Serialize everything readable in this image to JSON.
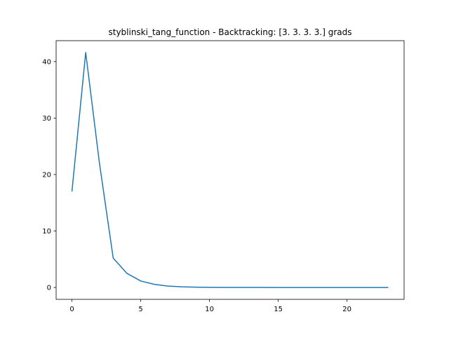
{
  "chart_data": {
    "type": "line",
    "title": "styblinski_tang_function - Backtracking: [3. 3. 3. 3.] grads",
    "xlabel": "",
    "ylabel": "",
    "xlim": [
      -1.15,
      24.15
    ],
    "ylim": [
      -2.1,
      43.7
    ],
    "xticks": [
      0,
      5,
      10,
      15,
      20
    ],
    "yticks": [
      0,
      10,
      20,
      30,
      40
    ],
    "grid": false,
    "series": [
      {
        "color": "#1f77b4",
        "x": [
          0,
          1,
          2,
          3,
          4,
          5,
          6,
          7,
          8,
          9,
          10,
          11,
          12,
          13,
          14,
          15,
          16,
          17,
          18,
          19,
          20,
          21,
          22,
          23
        ],
        "values": [
          17.0,
          41.6,
          22.0,
          5.2,
          2.5,
          1.15,
          0.55,
          0.25,
          0.12,
          0.06,
          0.03,
          0.015,
          0.008,
          0.004,
          0.002,
          0.001,
          0.0005,
          0.0003,
          0.0001,
          0.0001,
          0.0,
          0.0,
          0.0,
          0.0
        ]
      }
    ]
  }
}
